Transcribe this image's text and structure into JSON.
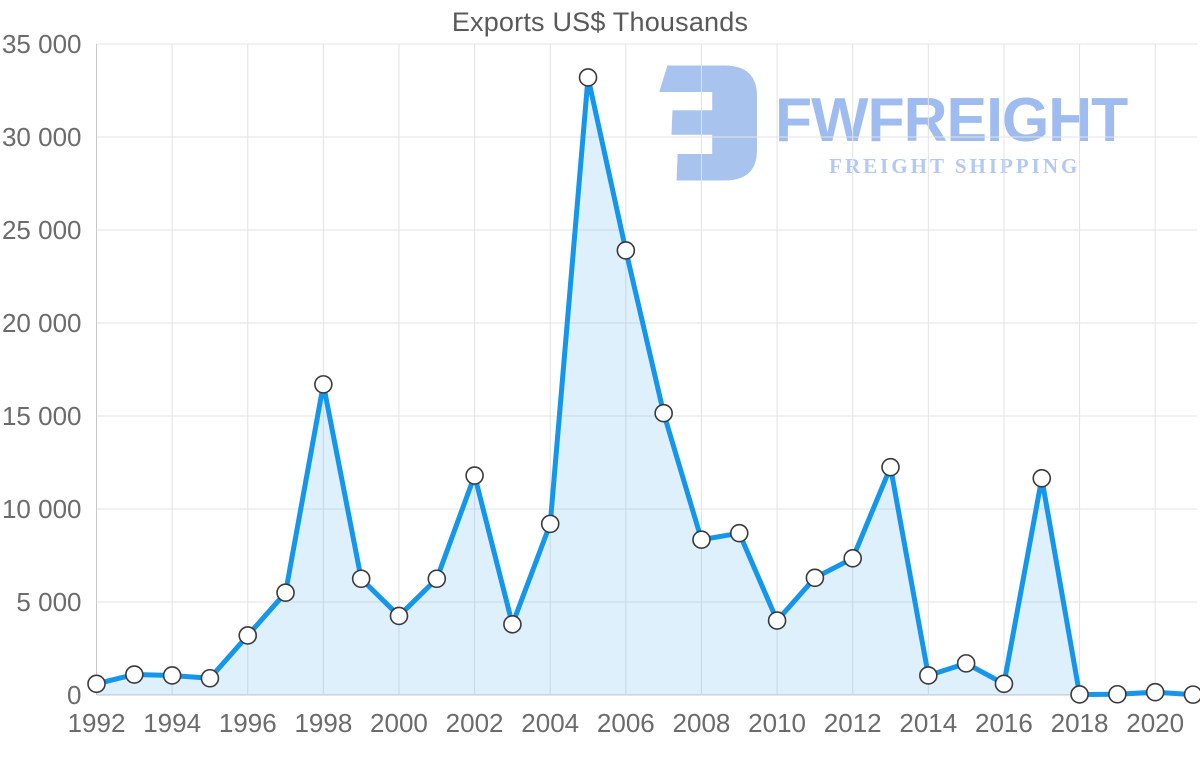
{
  "watermark": {
    "brand": "FWFREIGHT",
    "tagline": "FREIGHT SHIPPING"
  },
  "chart_data": {
    "type": "area",
    "title": "Exports US$ Thousands",
    "xlabel": "",
    "ylabel": "",
    "ylim": [
      0,
      35000
    ],
    "grid": true,
    "legend_position": "none",
    "x": [
      1992,
      1993,
      1994,
      1995,
      1996,
      1997,
      1998,
      1999,
      2000,
      2001,
      2002,
      2003,
      2004,
      2005,
      2006,
      2007,
      2008,
      2009,
      2010,
      2011,
      2012,
      2013,
      2014,
      2015,
      2016,
      2017,
      2018,
      2019,
      2020,
      2021
    ],
    "series": [
      {
        "name": "Exports US$ Thousands",
        "values": [
          600,
          1100,
          1050,
          900,
          3200,
          5500,
          16700,
          6250,
          4250,
          6250,
          11800,
          3800,
          9200,
          33200,
          23900,
          15150,
          8350,
          8700,
          4000,
          6300,
          7350,
          12250,
          1050,
          1700,
          600,
          11650,
          30,
          40,
          150,
          20
        ]
      }
    ],
    "yticks": [
      {
        "value": 0,
        "label": "0"
      },
      {
        "value": 5000,
        "label": "5 000"
      },
      {
        "value": 10000,
        "label": "10 000"
      },
      {
        "value": 15000,
        "label": "15 000"
      },
      {
        "value": 20000,
        "label": "20 000"
      },
      {
        "value": 25000,
        "label": "25 000"
      },
      {
        "value": 30000,
        "label": "30 000"
      },
      {
        "value": 35000,
        "label": "35 000"
      }
    ],
    "xticks": [
      {
        "value": 1992,
        "label": "1992"
      },
      {
        "value": 1994,
        "label": "1994"
      },
      {
        "value": 1996,
        "label": "1996"
      },
      {
        "value": 1998,
        "label": "1998"
      },
      {
        "value": 2000,
        "label": "2000"
      },
      {
        "value": 2002,
        "label": "2002"
      },
      {
        "value": 2004,
        "label": "2004"
      },
      {
        "value": 2006,
        "label": "2006"
      },
      {
        "value": 2008,
        "label": "2008"
      },
      {
        "value": 2010,
        "label": "2010"
      },
      {
        "value": 2012,
        "label": "2012"
      },
      {
        "value": 2014,
        "label": "2014"
      },
      {
        "value": 2016,
        "label": "2016"
      },
      {
        "value": 2018,
        "label": "2018"
      },
      {
        "value": 2020,
        "label": "2020"
      }
    ],
    "colors": {
      "line": "#1496ec",
      "fill": "rgba(20,150,236,0.14)",
      "grid": "#e3e3e3",
      "axis": "#c7c7c7",
      "tick_text": "#6b6b6b",
      "title_text": "#595959",
      "marker_fill": "#ffffff",
      "marker_stroke": "#3a3a3a",
      "watermark": "#a9c3ef"
    }
  }
}
